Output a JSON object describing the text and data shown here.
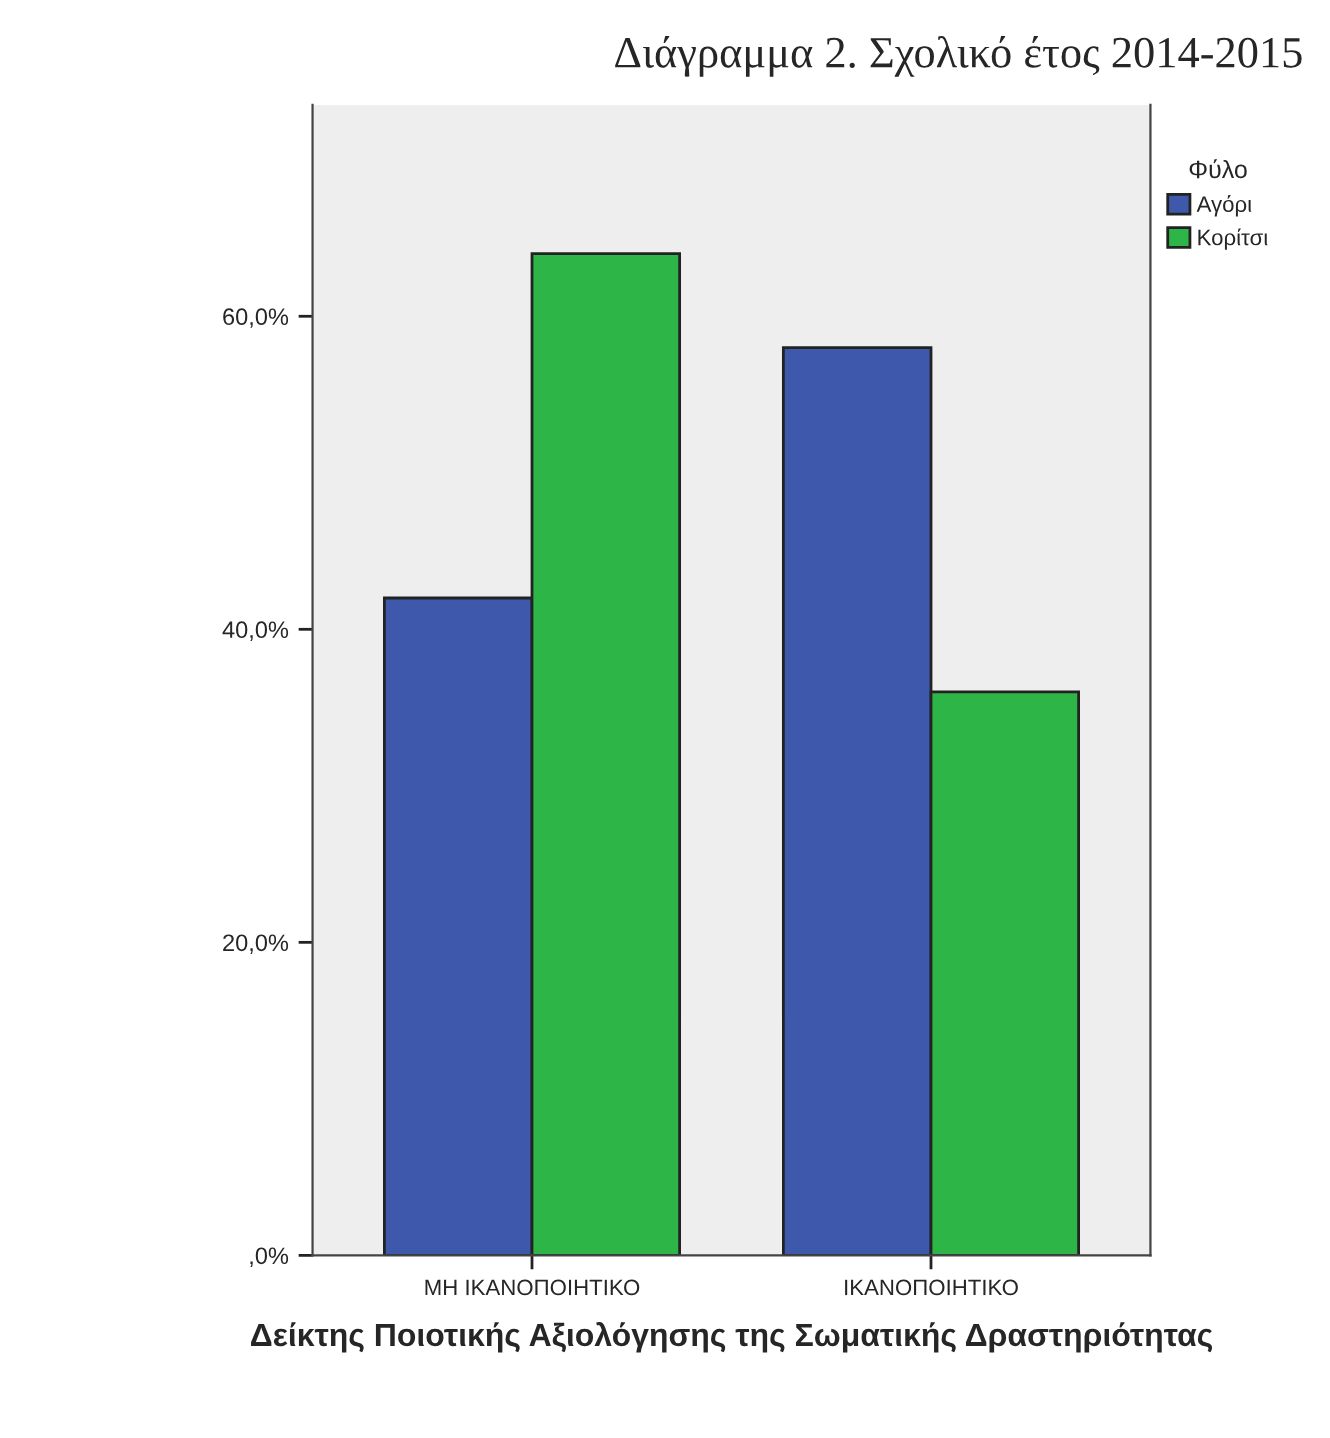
{
  "chart_data": {
    "type": "bar",
    "title": "Διάγραμμα 2. Σχολικό έτος 2014-2015",
    "xlabel": "Δείκτης Ποιοτικής Αξιολόγησης της Σωματικής Δραστηριότητας",
    "legend_title": "Φύλο",
    "categories": [
      "ΜΗ ΙΚΑΝΟΠΟΙΗΤΙΚΟ",
      "ΙΚΑΝΟΠΟΙΗΤΙΚΟ"
    ],
    "series": [
      {
        "name": "Αγόρι",
        "color": "#3e58ac",
        "values": [
          42,
          58
        ]
      },
      {
        "name": "Κορίτσι",
        "color": "#2eb548",
        "values": [
          64,
          36
        ]
      }
    ],
    "ylim": [
      0,
      73.5
    ],
    "yticks": [
      {
        "value": 0,
        "label": ",0%"
      },
      {
        "value": 20,
        "label": "20,0%"
      },
      {
        "value": 40,
        "label": "40,0%"
      },
      {
        "value": 60,
        "label": "60,0%"
      }
    ],
    "grid": false,
    "legend": "right"
  }
}
